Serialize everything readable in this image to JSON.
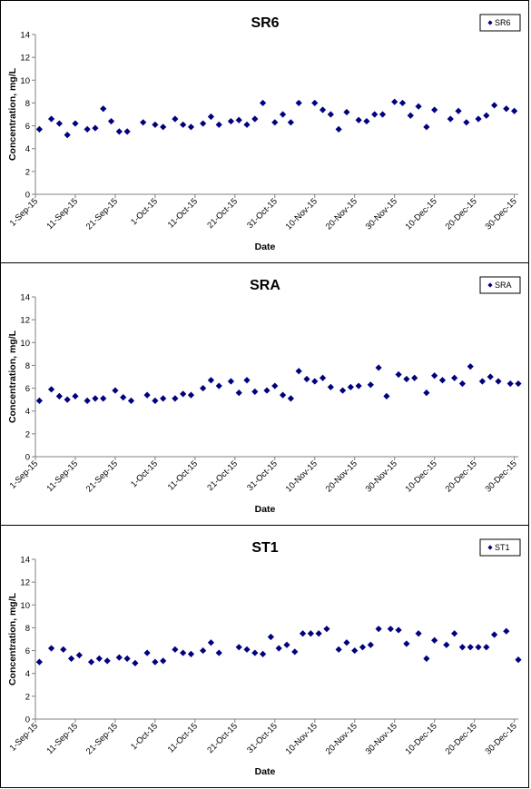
{
  "colors": {
    "marker": "#00007f",
    "axis": "#808080",
    "frame": "#000000"
  },
  "chart_data": [
    {
      "type": "scatter",
      "title": "SR6",
      "xlabel": "Date",
      "ylabel": "Concentration, mg/L",
      "ylim": [
        0,
        14
      ],
      "yticks": [
        0,
        2,
        4,
        6,
        8,
        10,
        12,
        14
      ],
      "xlim": [
        "2015-09-01",
        "2015-12-31"
      ],
      "xtick_labels": [
        "1-Sep-15",
        "11-Sep-15",
        "21-Sep-15",
        "1-Oct-15",
        "11-Oct-15",
        "21-Oct-15",
        "31-Oct-15",
        "10-Nov-15",
        "20-Nov-15",
        "30-Nov-15",
        "10-Dec-15",
        "20-Dec-15",
        "30-Dec-15"
      ],
      "xtick_dates": [
        "2015-09-01",
        "2015-09-11",
        "2015-09-21",
        "2015-10-01",
        "2015-10-11",
        "2015-10-21",
        "2015-10-31",
        "2015-11-10",
        "2015-11-20",
        "2015-11-30",
        "2015-12-10",
        "2015-12-20",
        "2015-12-30"
      ],
      "grid": false,
      "legend_position": "top-right",
      "series": [
        {
          "name": "SR6",
          "x": [
            "2015-09-02",
            "2015-09-05",
            "2015-09-07",
            "2015-09-09",
            "2015-09-11",
            "2015-09-14",
            "2015-09-16",
            "2015-09-18",
            "2015-09-20",
            "2015-09-22",
            "2015-09-24",
            "2015-09-28",
            "2015-10-01",
            "2015-10-03",
            "2015-10-06",
            "2015-10-08",
            "2015-10-10",
            "2015-10-13",
            "2015-10-15",
            "2015-10-17",
            "2015-10-20",
            "2015-10-22",
            "2015-10-24",
            "2015-10-26",
            "2015-10-28",
            "2015-10-31",
            "2015-11-02",
            "2015-11-04",
            "2015-11-06",
            "2015-11-10",
            "2015-11-12",
            "2015-11-14",
            "2015-11-16",
            "2015-11-18",
            "2015-11-21",
            "2015-11-23",
            "2015-11-25",
            "2015-11-27",
            "2015-11-30",
            "2015-12-02",
            "2015-12-04",
            "2015-12-06",
            "2015-12-08",
            "2015-12-10",
            "2015-12-14",
            "2015-12-16",
            "2015-12-18",
            "2015-12-21",
            "2015-12-23",
            "2015-12-25",
            "2015-12-28",
            "2015-12-30"
          ],
          "y": [
            5.7,
            6.6,
            6.2,
            5.2,
            6.2,
            5.7,
            5.8,
            7.5,
            6.4,
            5.5,
            5.5,
            6.3,
            6.1,
            5.9,
            6.6,
            6.1,
            5.9,
            6.2,
            6.8,
            6.1,
            6.4,
            6.5,
            6.1,
            6.6,
            8.0,
            6.3,
            7.0,
            6.3,
            8.0,
            8.0,
            7.4,
            7.0,
            5.7,
            7.2,
            6.5,
            6.4,
            7.0,
            7.0,
            8.1,
            8.0,
            6.9,
            7.7,
            5.9,
            7.4,
            6.6,
            7.3,
            6.3,
            6.6,
            6.9,
            7.8,
            7.5,
            7.3
          ]
        }
      ]
    },
    {
      "type": "scatter",
      "title": "SRA",
      "xlabel": "Date",
      "ylabel": "Concentration, mg/L",
      "ylim": [
        0,
        14
      ],
      "yticks": [
        0,
        2,
        4,
        6,
        8,
        10,
        12,
        14
      ],
      "xlim": [
        "2015-09-01",
        "2015-12-31"
      ],
      "xtick_labels": [
        "1-Sep-15",
        "11-Sep-15",
        "21-Sep-15",
        "1-Oct-15",
        "11-Oct-15",
        "21-Oct-15",
        "31-Oct-15",
        "10-Nov-15",
        "20-Nov-15",
        "30-Nov-15",
        "10-Dec-15",
        "20-Dec-15",
        "30-Dec-15"
      ],
      "xtick_dates": [
        "2015-09-01",
        "2015-09-11",
        "2015-09-21",
        "2015-10-01",
        "2015-10-11",
        "2015-10-21",
        "2015-10-31",
        "2015-11-10",
        "2015-11-20",
        "2015-11-30",
        "2015-12-10",
        "2015-12-20",
        "2015-12-30"
      ],
      "grid": false,
      "legend_position": "top-right",
      "series": [
        {
          "name": "SRA",
          "x": [
            "2015-09-02",
            "2015-09-05",
            "2015-09-07",
            "2015-09-09",
            "2015-09-11",
            "2015-09-14",
            "2015-09-16",
            "2015-09-18",
            "2015-09-21",
            "2015-09-23",
            "2015-09-25",
            "2015-09-29",
            "2015-10-01",
            "2015-10-03",
            "2015-10-06",
            "2015-10-08",
            "2015-10-10",
            "2015-10-13",
            "2015-10-15",
            "2015-10-17",
            "2015-10-20",
            "2015-10-22",
            "2015-10-24",
            "2015-10-26",
            "2015-10-29",
            "2015-10-31",
            "2015-11-02",
            "2015-11-04",
            "2015-11-06",
            "2015-11-08",
            "2015-11-10",
            "2015-11-12",
            "2015-11-14",
            "2015-11-17",
            "2015-11-19",
            "2015-11-21",
            "2015-11-24",
            "2015-11-26",
            "2015-11-28",
            "2015-12-01",
            "2015-12-03",
            "2015-12-05",
            "2015-12-08",
            "2015-12-10",
            "2015-12-12",
            "2015-12-15",
            "2015-12-17",
            "2015-12-19",
            "2015-12-22",
            "2015-12-24",
            "2015-12-26",
            "2015-12-29",
            "2015-12-31"
          ],
          "y": [
            4.9,
            5.9,
            5.3,
            5.0,
            5.3,
            4.9,
            5.1,
            5.1,
            5.8,
            5.2,
            4.9,
            5.4,
            4.9,
            5.1,
            5.1,
            5.5,
            5.4,
            6.0,
            6.7,
            6.2,
            6.6,
            5.6,
            6.7,
            5.7,
            5.8,
            6.2,
            5.4,
            5.1,
            7.5,
            6.8,
            6.6,
            6.9,
            6.1,
            5.8,
            6.1,
            6.2,
            6.3,
            7.8,
            5.3,
            7.2,
            6.8,
            6.9,
            5.6,
            7.1,
            6.7,
            6.9,
            6.4,
            7.9,
            6.6,
            7.0,
            6.6,
            6.4,
            6.4
          ]
        }
      ]
    },
    {
      "type": "scatter",
      "title": "ST1",
      "xlabel": "Date",
      "ylabel": "Concentration, mg/L",
      "ylim": [
        0,
        14
      ],
      "yticks": [
        0,
        2,
        4,
        6,
        8,
        10,
        12,
        14
      ],
      "xlim": [
        "2015-09-01",
        "2015-12-31"
      ],
      "xtick_labels": [
        "1-Sep-15",
        "11-Sep-15",
        "21-Sep-15",
        "1-Oct-15",
        "11-Oct-15",
        "21-Oct-15",
        "31-Oct-15",
        "10-Nov-15",
        "20-Nov-15",
        "30-Nov-15",
        "10-Dec-15",
        "20-Dec-15",
        "30-Dec-15"
      ],
      "xtick_dates": [
        "2015-09-01",
        "2015-09-11",
        "2015-09-21",
        "2015-10-01",
        "2015-10-11",
        "2015-10-21",
        "2015-10-31",
        "2015-11-10",
        "2015-11-20",
        "2015-11-30",
        "2015-12-10",
        "2015-12-20",
        "2015-12-30"
      ],
      "grid": false,
      "legend_position": "top-right",
      "series": [
        {
          "name": "ST1",
          "x": [
            "2015-09-02",
            "2015-09-05",
            "2015-09-08",
            "2015-09-10",
            "2015-09-12",
            "2015-09-15",
            "2015-09-17",
            "2015-09-19",
            "2015-09-22",
            "2015-09-24",
            "2015-09-26",
            "2015-09-29",
            "2015-10-01",
            "2015-10-03",
            "2015-10-06",
            "2015-10-08",
            "2015-10-10",
            "2015-10-13",
            "2015-10-15",
            "2015-10-17",
            "2015-10-22",
            "2015-10-24",
            "2015-10-26",
            "2015-10-28",
            "2015-10-30",
            "2015-11-01",
            "2015-11-03",
            "2015-11-05",
            "2015-11-07",
            "2015-11-09",
            "2015-11-11",
            "2015-11-13",
            "2015-11-16",
            "2015-11-18",
            "2015-11-20",
            "2015-11-22",
            "2015-11-24",
            "2015-11-26",
            "2015-11-29",
            "2015-12-01",
            "2015-12-03",
            "2015-12-06",
            "2015-12-08",
            "2015-12-10",
            "2015-12-13",
            "2015-12-15",
            "2015-12-17",
            "2015-12-19",
            "2015-12-21",
            "2015-12-23",
            "2015-12-25",
            "2015-12-28",
            "2015-12-31"
          ],
          "y": [
            5.0,
            6.2,
            6.1,
            5.3,
            5.6,
            5.0,
            5.3,
            5.1,
            5.4,
            5.3,
            4.9,
            5.8,
            5.0,
            5.1,
            6.1,
            5.8,
            5.7,
            6.0,
            6.7,
            5.8,
            6.3,
            6.1,
            5.8,
            5.7,
            7.2,
            6.2,
            6.5,
            5.9,
            7.5,
            7.5,
            7.5,
            7.9,
            6.1,
            6.7,
            6.0,
            6.3,
            6.5,
            7.9,
            7.9,
            7.8,
            6.6,
            7.5,
            5.3,
            6.9,
            6.5,
            7.5,
            6.3,
            6.3,
            6.3,
            6.3,
            7.4,
            7.7,
            5.2
          ]
        }
      ]
    }
  ]
}
